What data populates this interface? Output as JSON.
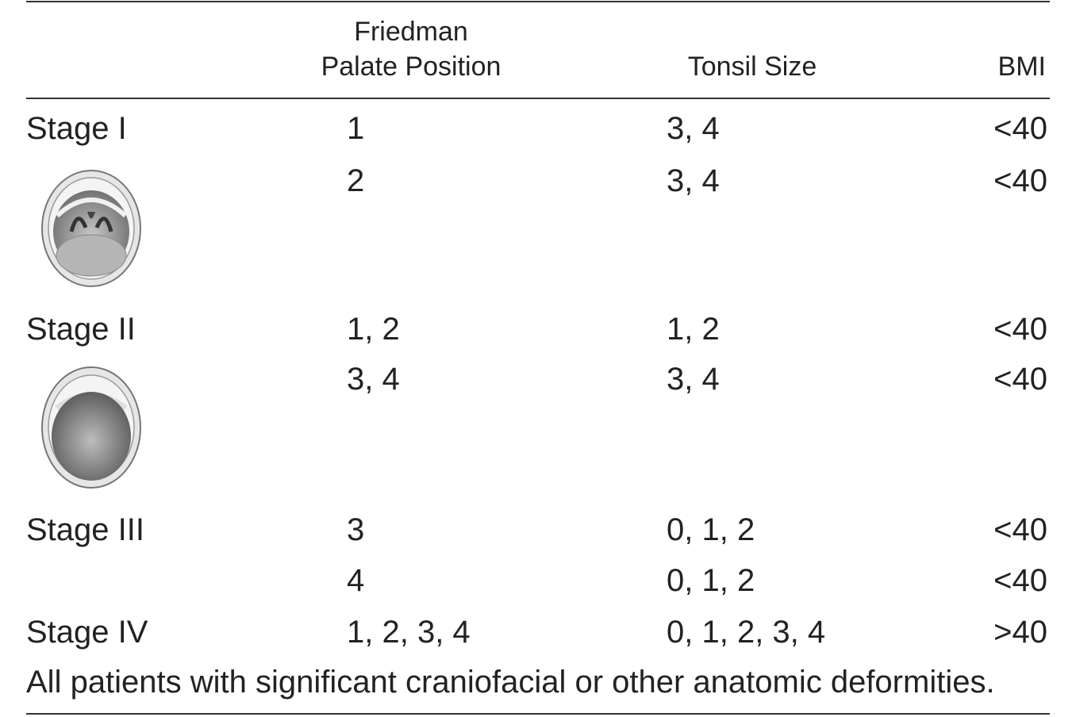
{
  "header": {
    "columns": [
      {
        "lines": [
          "Friedman",
          "Palate Position"
        ]
      },
      {
        "lines": [
          "Tonsil Size"
        ]
      },
      {
        "lines": [
          "BMI"
        ]
      }
    ]
  },
  "stages": [
    {
      "label": "Stage I",
      "rows": [
        [
          "1",
          "3, 4",
          "<40"
        ],
        [
          "2",
          "3, 4",
          "<40"
        ]
      ]
    },
    {
      "label": "Stage II",
      "rows": [
        [
          "1, 2",
          "1, 2",
          "<40"
        ],
        [
          "3, 4",
          "3, 4",
          "<40"
        ]
      ]
    },
    {
      "label": "Stage III",
      "rows": [
        [
          "3",
          "0, 1, 2",
          "<40"
        ],
        [
          "4",
          "0, 1, 2",
          "<40"
        ]
      ]
    },
    {
      "label": "Stage IV",
      "rows": [
        [
          "1, 2, 3, 4",
          "0, 1, 2, 3, 4",
          ">40"
        ]
      ]
    }
  ],
  "footnote": "All patients with significant craniofacial or other anatomic deformities."
}
